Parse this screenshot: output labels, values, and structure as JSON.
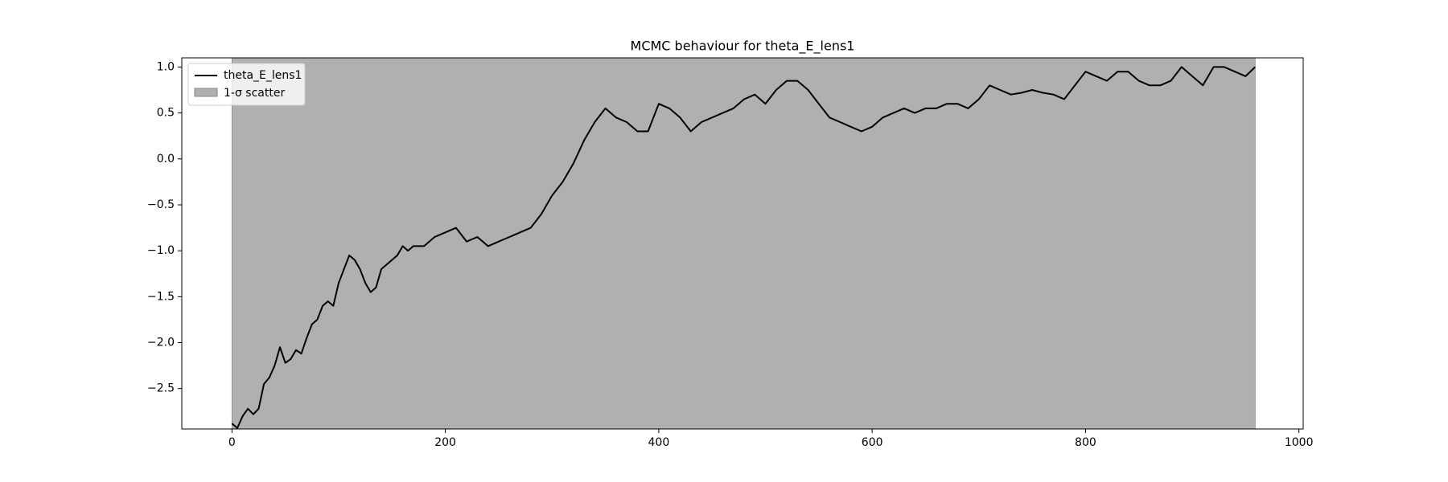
{
  "chart_data": {
    "type": "line",
    "title": "MCMC behaviour for theta_E_lens1",
    "x": [
      0,
      5,
      10,
      15,
      20,
      25,
      30,
      35,
      40,
      45,
      50,
      55,
      60,
      65,
      70,
      75,
      80,
      85,
      90,
      95,
      100,
      105,
      110,
      115,
      120,
      125,
      130,
      135,
      140,
      145,
      150,
      155,
      160,
      165,
      170,
      180,
      190,
      200,
      210,
      220,
      230,
      240,
      250,
      260,
      270,
      280,
      290,
      300,
      310,
      320,
      330,
      340,
      350,
      360,
      370,
      380,
      390,
      400,
      410,
      420,
      430,
      440,
      450,
      460,
      470,
      480,
      490,
      500,
      510,
      520,
      530,
      540,
      550,
      560,
      570,
      580,
      590,
      600,
      610,
      620,
      630,
      640,
      650,
      660,
      670,
      680,
      690,
      700,
      710,
      720,
      730,
      740,
      750,
      760,
      770,
      780,
      790,
      800,
      810,
      820,
      830,
      840,
      850,
      860,
      870,
      880,
      890,
      900,
      910,
      920,
      930,
      940,
      950,
      959
    ],
    "series": [
      {
        "name": "theta_E_lens1",
        "color": "#000000",
        "values": [
          -2.88,
          -2.93,
          -2.8,
          -2.72,
          -2.78,
          -2.72,
          -2.45,
          -2.38,
          -2.25,
          -2.05,
          -2.22,
          -2.18,
          -2.08,
          -2.12,
          -1.95,
          -1.8,
          -1.75,
          -1.6,
          -1.55,
          -1.6,
          -1.35,
          -1.2,
          -1.05,
          -1.1,
          -1.2,
          -1.35,
          -1.45,
          -1.4,
          -1.2,
          -1.15,
          -1.1,
          -1.05,
          -0.95,
          -1.0,
          -0.95,
          -0.95,
          -0.85,
          -0.8,
          -0.75,
          -0.9,
          -0.85,
          -0.95,
          -0.9,
          -0.85,
          -0.8,
          -0.75,
          -0.6,
          -0.4,
          -0.25,
          -0.05,
          0.2,
          0.4,
          0.55,
          0.45,
          0.4,
          0.3,
          0.3,
          0.6,
          0.55,
          0.45,
          0.3,
          0.4,
          0.45,
          0.5,
          0.55,
          0.65,
          0.7,
          0.6,
          0.75,
          0.85,
          0.85,
          0.75,
          0.6,
          0.45,
          0.4,
          0.35,
          0.3,
          0.35,
          0.45,
          0.5,
          0.55,
          0.5,
          0.55,
          0.55,
          0.6,
          0.6,
          0.55,
          0.65,
          0.8,
          0.75,
          0.7,
          0.72,
          0.75,
          0.72,
          0.7,
          0.65,
          0.8,
          0.95,
          0.9,
          0.85,
          0.95,
          0.95,
          0.85,
          0.8,
          0.8,
          0.85,
          1.0,
          0.9,
          0.8,
          1.0,
          1.0,
          0.95,
          0.9,
          1.0
        ]
      }
    ],
    "band": {
      "name": "1-σ scatter",
      "color": "#b0b0b0",
      "x": [
        0,
        959
      ]
    },
    "xlim": [
      -47,
      1004
    ],
    "ylim": [
      -2.94,
      1.1
    ],
    "xticks": [
      0,
      200,
      400,
      600,
      800,
      1000
    ],
    "yticks": [
      {
        "value": -2.5,
        "label": "−2.5"
      },
      {
        "value": -2.0,
        "label": "−2.0"
      },
      {
        "value": -1.5,
        "label": "−1.5"
      },
      {
        "value": -1.0,
        "label": "−1.0"
      },
      {
        "value": -0.5,
        "label": "−0.5"
      },
      {
        "value": 0.0,
        "label": "0.0"
      },
      0.5,
      {
        "value": 1.0,
        "label": "1.0"
      }
    ],
    "legend": "upper left"
  }
}
